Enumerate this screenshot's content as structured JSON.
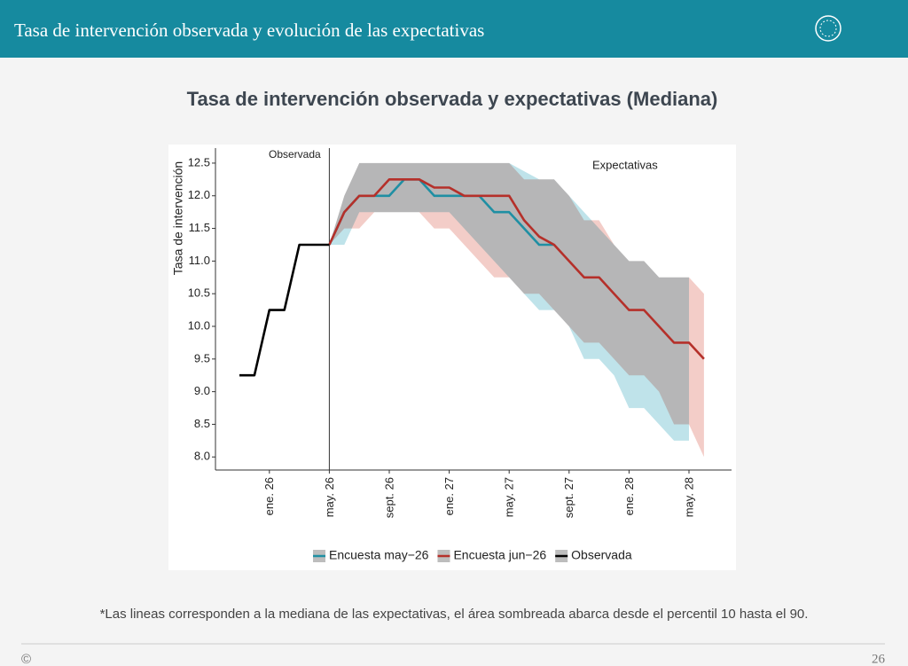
{
  "header": {
    "title": "Tasa de intervención observada y evolución de las expectativas"
  },
  "chart_data": {
    "type": "line",
    "title": "Tasa de intervención observada y expectativas (Mediana)",
    "y_label": "Tasa de intervención",
    "annotations": [
      "Observada",
      "Expectativas"
    ],
    "categories": [
      null,
      null,
      "ene. 26",
      null,
      null,
      null,
      "may. 26",
      null,
      null,
      null,
      "sept. 26",
      null,
      null,
      null,
      "ene. 27",
      null,
      null,
      null,
      "may. 27",
      null,
      null,
      null,
      "sept. 27",
      null,
      null,
      null,
      "ene. 28",
      null,
      null,
      null,
      "may. 28",
      null
    ],
    "ylim": [
      7.8,
      12.73
    ],
    "yticks": [
      {
        "value": 8,
        "label": "8.0"
      },
      8.5,
      {
        "value": 9,
        "label": "9.0"
      },
      9.5,
      {
        "value": 10,
        "label": "10.0"
      },
      10.5,
      {
        "value": 11,
        "label": "11.0"
      },
      11.5,
      {
        "value": 12,
        "label": "12.0"
      },
      12.5
    ],
    "series": [
      {
        "name": "Encuesta may−26",
        "color": "#1f8fa3",
        "band_color": "#bfe3ea",
        "values": [
          null,
          null,
          null,
          null,
          null,
          null,
          11.25,
          11.75,
          12.0,
          12.0,
          12.0,
          12.25,
          12.25,
          12.0,
          12.0,
          12.0,
          12.0,
          11.75,
          11.75,
          11.5,
          11.25,
          11.25,
          null,
          null,
          null,
          null,
          null,
          null,
          null,
          null,
          null,
          null
        ],
        "upper": [
          null,
          null,
          null,
          null,
          null,
          null,
          11.25,
          12.0,
          12.5,
          12.5,
          12.5,
          12.5,
          12.5,
          12.5,
          12.5,
          12.5,
          12.5,
          12.5,
          12.5,
          12.375,
          12.25,
          12.25,
          12.0,
          11.75,
          11.5,
          11.25,
          11.0,
          11.0,
          10.75,
          10.75,
          10.75,
          null
        ],
        "lower": [
          null,
          null,
          null,
          null,
          null,
          null,
          11.25,
          11.25,
          11.75,
          11.75,
          11.75,
          11.75,
          11.75,
          11.75,
          11.75,
          11.5,
          11.25,
          11.0,
          10.75,
          10.5,
          10.25,
          10.25,
          10.0,
          9.5,
          9.5,
          9.25,
          8.75,
          8.75,
          8.5,
          8.25,
          8.25,
          null
        ]
      },
      {
        "name": "Encuesta jun−26",
        "color": "#b5302a",
        "band_color": "#f3cdc8",
        "values": [
          null,
          null,
          null,
          null,
          null,
          null,
          11.25,
          11.75,
          12.0,
          12.0,
          12.25,
          12.25,
          12.25,
          12.125,
          12.125,
          12.0,
          12.0,
          12.0,
          12.0,
          11.625,
          11.375,
          11.25,
          11.0,
          10.75,
          10.75,
          10.5,
          10.25,
          10.25,
          10.0,
          9.75,
          9.75,
          9.5
        ],
        "upper": [
          null,
          null,
          null,
          null,
          null,
          null,
          11.25,
          12.0,
          12.5,
          12.5,
          12.5,
          12.5,
          12.5,
          12.5,
          12.5,
          12.5,
          12.5,
          12.5,
          12.5,
          12.25,
          12.25,
          12.25,
          12.0,
          11.625,
          11.625,
          11.25,
          11.0,
          11.0,
          10.75,
          10.75,
          10.75,
          10.5
        ],
        "lower": [
          null,
          null,
          null,
          null,
          null,
          null,
          11.25,
          11.5,
          11.5,
          11.75,
          11.75,
          11.75,
          11.75,
          11.5,
          11.5,
          11.25,
          11.0,
          10.75,
          10.75,
          10.5,
          10.5,
          10.25,
          10.0,
          9.75,
          9.75,
          9.5,
          9.25,
          9.25,
          9.0,
          8.5,
          8.5,
          8.0
        ]
      },
      {
        "name": "Observada",
        "color": "#000000",
        "values": [
          9.25,
          9.25,
          10.25,
          10.25,
          11.25,
          11.25,
          11.25,
          null,
          null,
          null,
          null,
          null,
          null,
          null,
          null,
          null,
          null,
          null,
          null,
          null,
          null,
          null,
          null,
          null,
          null,
          null,
          null,
          null,
          null,
          null,
          null,
          null
        ]
      }
    ]
  },
  "footnote": "*Las lineas corresponden a la mediana de las expectativas, el área sombreada abarca desde el percentil 10 hasta el 90.",
  "footer": {
    "copyright": "©",
    "page": "26"
  }
}
